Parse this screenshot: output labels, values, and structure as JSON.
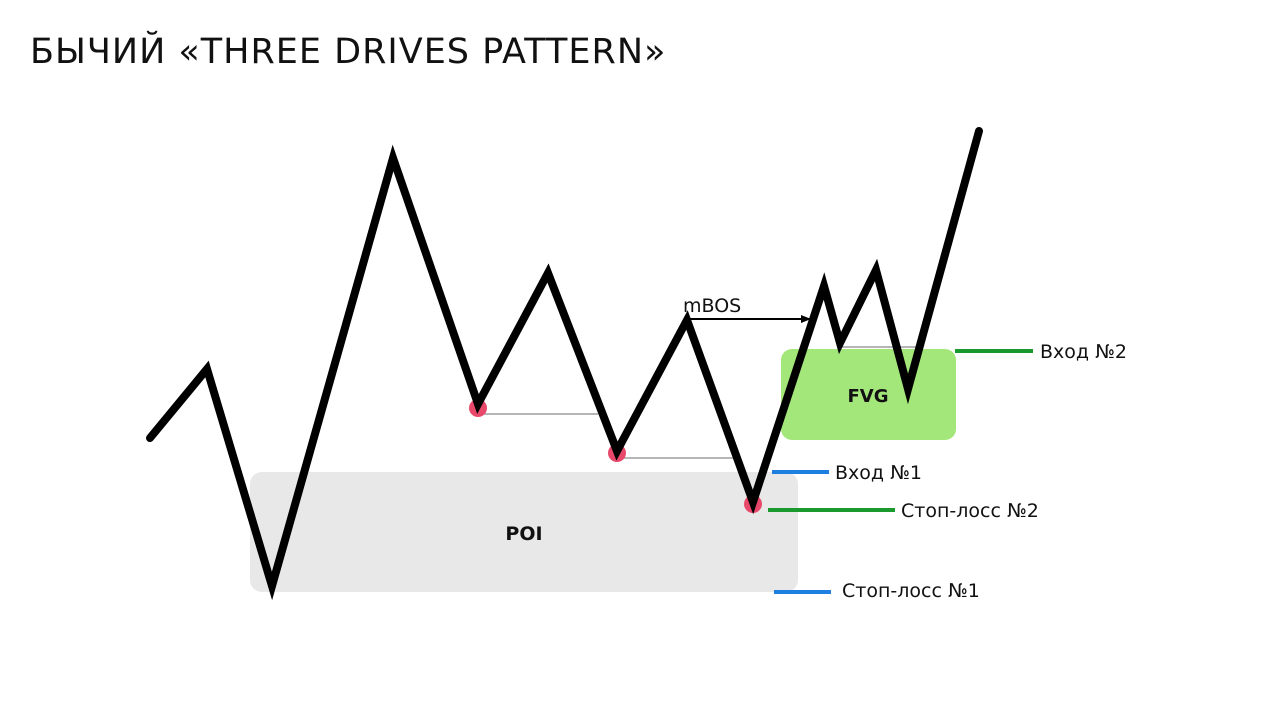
{
  "title": "БЫЧИЙ «THREE DRIVES PATTERN»",
  "zones": {
    "poi": "POI",
    "fvg": "FVG"
  },
  "annotations": {
    "mbos": "mBOS"
  },
  "levels": {
    "entry_2": "Вход №2",
    "entry_1": "Вход №1",
    "stop_loss_2": "Стоп-лосс №2",
    "stop_loss_1": "Стоп-лосс №1"
  },
  "colors": {
    "price_line": "#000000",
    "poi_fill": "#e8e8e8",
    "fvg_fill": "#a3e67a",
    "swing_low_marker": "#e8496b",
    "entry_1_level": "#1e7fe0",
    "stop_loss_1_level": "#1e7fe0",
    "entry_2_level": "#1a9a2e",
    "stop_loss_2_level": "#1a9a2e",
    "reference_line": "#8a8a8a"
  }
}
